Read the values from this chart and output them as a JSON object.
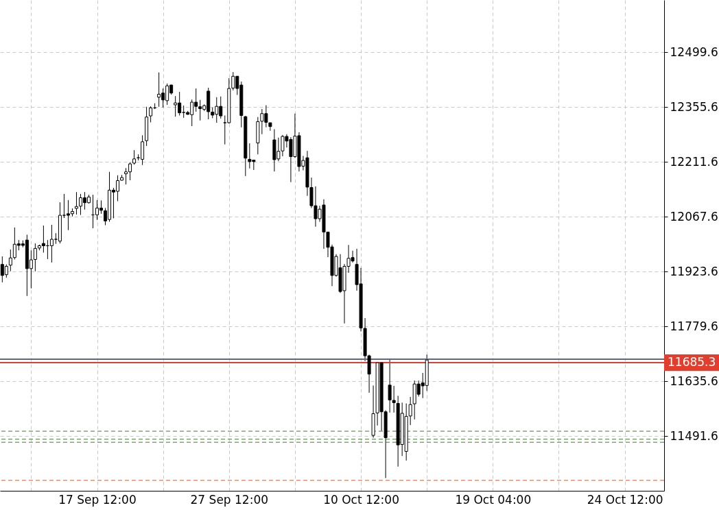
{
  "chart_data": {
    "type": "candlestick",
    "categories": [
      null,
      null,
      null,
      null,
      null,
      null,
      null,
      null,
      null,
      null,
      null,
      null,
      null,
      null,
      null,
      null,
      null,
      null,
      null,
      null,
      null,
      null,
      null,
      "17 Sep 12:00",
      null,
      null,
      null,
      null,
      null,
      null,
      null,
      null,
      null,
      null,
      null,
      null,
      null,
      null,
      null,
      null,
      null,
      null,
      null,
      null,
      null,
      null,
      null,
      null,
      null,
      null,
      null,
      null,
      null,
      null,
      null,
      "27 Sep 12:00",
      null,
      null,
      null,
      null,
      null,
      null,
      null,
      null,
      null,
      null,
      null,
      null,
      null,
      null,
      null,
      null,
      null,
      null,
      null,
      null,
      null,
      null,
      null,
      null,
      null,
      null,
      null,
      null,
      null,
      null,
      null,
      "10 Oct 12:00",
      null,
      null,
      null,
      null,
      null,
      null,
      null,
      null,
      null,
      null,
      null,
      null,
      null,
      null,
      null,
      null,
      null,
      null,
      null,
      null,
      null,
      null,
      null,
      null,
      null,
      null,
      null,
      null,
      null,
      null,
      null,
      "19 Oct 04:00",
      null,
      null,
      null,
      null,
      null,
      null,
      null,
      null,
      null,
      null,
      null,
      null,
      null,
      null,
      null,
      null,
      null,
      null,
      null,
      null,
      null,
      null,
      null,
      null,
      null,
      null,
      null,
      null,
      null,
      null,
      null,
      "24 Oct 12:00",
      null,
      null,
      null,
      null,
      null,
      null,
      null,
      null,
      null
    ],
    "ohlc": [
      [
        11943,
        11964,
        11896,
        11914
      ],
      [
        11916,
        11943,
        11908,
        11938
      ],
      [
        11941,
        11982,
        11925,
        11960
      ],
      [
        11961,
        12040,
        11956,
        11996
      ],
      [
        11997,
        12007,
        11980,
        11993
      ],
      [
        11997,
        12006,
        11988,
        11993
      ],
      [
        12007,
        12021,
        11860,
        11932
      ],
      [
        11932,
        11980,
        11880,
        11955
      ],
      [
        11956,
        11998,
        11925,
        11985
      ],
      [
        11986,
        11995,
        11980,
        11992
      ],
      [
        11998,
        12045,
        11974,
        11992
      ],
      [
        11992,
        12007,
        11957,
        11992
      ],
      [
        11992,
        12047,
        11948,
        12009
      ],
      [
        12009,
        12025,
        11997,
        12009
      ],
      [
        12004,
        12106,
        11998,
        12072
      ],
      [
        12072,
        12128,
        12065,
        12072
      ],
      [
        12076,
        12112,
        12033,
        12072
      ],
      [
        12076,
        12090,
        12069,
        12082
      ],
      [
        12090,
        12133,
        12074,
        12095
      ],
      [
        12096,
        12128,
        12073,
        12118
      ],
      [
        12118,
        12133,
        12087,
        12105
      ],
      [
        12105,
        12126,
        12103,
        12120
      ],
      [
        12073,
        12126,
        12038,
        12073
      ],
      [
        12073,
        12112,
        12060,
        12091
      ],
      [
        12091,
        12111,
        12076,
        12085
      ],
      [
        12084,
        12091,
        12046,
        12057
      ],
      [
        12061,
        12186,
        12055,
        12138
      ],
      [
        12138,
        12144,
        12064,
        12133
      ],
      [
        12135,
        12177,
        12109,
        12163
      ],
      [
        12164,
        12178,
        12163,
        12171
      ],
      [
        12181,
        12196,
        12153,
        12186
      ],
      [
        12186,
        12211,
        12164,
        12207
      ],
      [
        12209,
        12243,
        12205,
        12220
      ],
      [
        12223,
        12232,
        12216,
        12223
      ],
      [
        12219,
        12282,
        12204,
        12265
      ],
      [
        12268,
        12357,
        12254,
        12330
      ],
      [
        12333,
        12358,
        12316,
        12354
      ],
      [
        12354,
        12366,
        12351,
        12354
      ],
      [
        12382,
        12447,
        12357,
        12390
      ],
      [
        12393,
        12405,
        12355,
        12375
      ],
      [
        12373,
        12418,
        12362,
        12412
      ],
      [
        12414,
        12415,
        12389,
        12393
      ],
      [
        12362,
        12385,
        12331,
        12367
      ],
      [
        12367,
        12396,
        12334,
        12341
      ],
      [
        12342,
        12360,
        12328,
        12342
      ],
      [
        12342,
        12346,
        12336,
        12337
      ],
      [
        12336,
        12376,
        12306,
        12369
      ],
      [
        12369,
        12405,
        12344,
        12358
      ],
      [
        12357,
        12375,
        12321,
        12352
      ],
      [
        12350,
        12363,
        12346,
        12360
      ],
      [
        12398,
        12407,
        12324,
        12344
      ],
      [
        12343,
        12355,
        12327,
        12335
      ],
      [
        12337,
        12382,
        12315,
        12358
      ],
      [
        12358,
        12384,
        12326,
        12333
      ],
      [
        12315,
        12334,
        12258,
        12315
      ],
      [
        12315,
        12432,
        12313,
        12405
      ],
      [
        12406,
        12448,
        12400,
        12437
      ],
      [
        12437,
        12438,
        12388,
        12405
      ],
      [
        12414,
        12423,
        12303,
        12334
      ],
      [
        12331,
        12333,
        12175,
        12222
      ],
      [
        12219,
        12261,
        12195,
        12213
      ],
      [
        12217,
        12217,
        12191,
        12213
      ],
      [
        12262,
        12330,
        12232,
        12318
      ],
      [
        12319,
        12351,
        12285,
        12339
      ],
      [
        12339,
        12361,
        12303,
        12316
      ],
      [
        12315,
        12315,
        12294,
        12305
      ],
      [
        12270,
        12298,
        12187,
        12218
      ],
      [
        12220,
        12276,
        12214,
        12240
      ],
      [
        12241,
        12283,
        12227,
        12279
      ],
      [
        12279,
        12285,
        12250,
        12267
      ],
      [
        12271,
        12277,
        12159,
        12226
      ],
      [
        12226,
        12339,
        12223,
        12280
      ],
      [
        12281,
        12290,
        12187,
        12200
      ],
      [
        12201,
        12228,
        12190,
        12216
      ],
      [
        12223,
        12241,
        12123,
        12146
      ],
      [
        12145,
        12171,
        12091,
        12097
      ],
      [
        12097,
        12148,
        12042,
        12063
      ],
      [
        12063,
        12097,
        12055,
        12088
      ],
      [
        12099,
        12114,
        11984,
        12028
      ],
      [
        12028,
        12028,
        11962,
        11988
      ],
      [
        11989,
        11995,
        11886,
        11914
      ],
      [
        11914,
        11970,
        11911,
        11964
      ],
      [
        11934,
        11970,
        11868,
        11872
      ],
      [
        11874,
        11944,
        11788,
        11938
      ],
      [
        11938,
        11994,
        11921,
        11959
      ],
      [
        11961,
        11979,
        11948,
        11952
      ],
      [
        11943,
        11984,
        11874,
        11890
      ],
      [
        11892,
        11934,
        11767,
        11776
      ],
      [
        11775,
        11802,
        11689,
        11703
      ],
      [
        11703,
        11706,
        11606,
        11655
      ],
      [
        11494,
        11625,
        11488,
        11551
      ],
      [
        11553,
        11685,
        11520,
        11685
      ],
      [
        11685,
        11685,
        11506,
        11556
      ],
      [
        11556,
        11560,
        11382,
        11488
      ],
      [
        11626,
        11696,
        11554,
        11587
      ],
      [
        11586,
        11624,
        11554,
        11580
      ],
      [
        11578,
        11598,
        11412,
        11469
      ],
      [
        11470,
        11580,
        11440,
        11552
      ],
      [
        11452,
        11578,
        11428,
        11544
      ],
      [
        11545,
        11595,
        11521,
        11575
      ],
      [
        11577,
        11638,
        11536,
        11629
      ],
      [
        11629,
        11638,
        11596,
        11602
      ],
      [
        11632,
        11658,
        11592,
        11624
      ],
      [
        11625,
        11706,
        11611,
        11692
      ],
      null,
      null,
      null,
      null,
      null,
      null,
      null,
      null,
      null,
      null,
      null,
      null,
      null,
      null,
      null,
      null,
      null,
      null,
      null,
      null,
      null,
      null,
      null,
      null,
      null,
      null,
      null,
      null,
      null,
      null,
      null,
      null,
      null,
      null,
      null,
      null,
      null,
      null,
      null,
      null,
      null,
      null,
      null,
      null,
      null,
      null,
      null,
      null,
      null,
      null,
      null,
      null,
      null,
      null,
      null,
      null,
      null
    ],
    "ylim": [
      11348.5,
      12637.3
    ],
    "yticks": [
      11491.6,
      11635.6,
      11779.6,
      11923.6,
      12067.6,
      12211.6,
      12355.6,
      12499.6
    ],
    "grid": true,
    "ref_lines": [
      {
        "axis": "y",
        "value": 11694,
        "color": "#56688f"
      },
      {
        "axis": "y",
        "value": 11685.3,
        "label": "11685.3",
        "color": "#e23d2d"
      },
      {
        "axis": "y",
        "value": 11505,
        "color": "#3d7a2c",
        "line_style": "dashed"
      },
      {
        "axis": "y",
        "value": 11484,
        "color": "#3d7a2c",
        "line_style": "dashed"
      },
      {
        "axis": "y",
        "value": 11476,
        "color": "#3d7a2c",
        "line_style": "dashed"
      },
      {
        "axis": "y",
        "value": 11376,
        "color": "#d9673f",
        "line_style": "dashed"
      }
    ]
  }
}
